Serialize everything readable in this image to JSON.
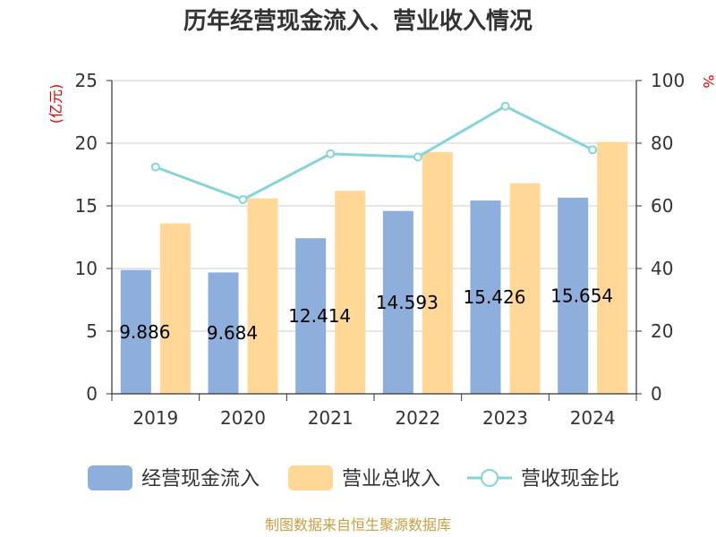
{
  "chart_data": {
    "type": "bar",
    "title": "历年经营现金流入、营业收入情况",
    "categories": [
      "2019",
      "2020",
      "2021",
      "2022",
      "2023",
      "2024"
    ],
    "left_axis": {
      "unit": "(亿元)",
      "range": [
        0,
        25
      ],
      "ticks": [
        "0",
        "5",
        "10",
        "15",
        "20",
        "25"
      ]
    },
    "right_axis": {
      "unit": "%",
      "range": [
        0,
        100
      ],
      "ticks": [
        "0",
        "20",
        "40",
        "60",
        "80",
        "100"
      ]
    },
    "series": [
      {
        "name": "经营现金流入",
        "type": "bar",
        "axis": "left",
        "color": "#8eaedb",
        "values": [
          9.886,
          9.684,
          12.414,
          14.593,
          15.426,
          15.654
        ],
        "labels": [
          "9.886",
          "9.684",
          "12.414",
          "14.593",
          "15.426",
          "15.654"
        ]
      },
      {
        "name": "营业总收入",
        "type": "bar",
        "axis": "left",
        "color": "#ffd898",
        "values": [
          13.6,
          15.6,
          16.2,
          19.3,
          16.8,
          20.1
        ]
      },
      {
        "name": "营收现金比",
        "type": "line",
        "axis": "right",
        "color": "#86d4d8",
        "values": [
          72.4,
          62.0,
          76.6,
          75.6,
          91.8,
          77.9
        ]
      }
    ],
    "grid": true,
    "legend_position": "bottom"
  },
  "footer": {
    "source": "制图数据来自恒生聚源数据库"
  }
}
